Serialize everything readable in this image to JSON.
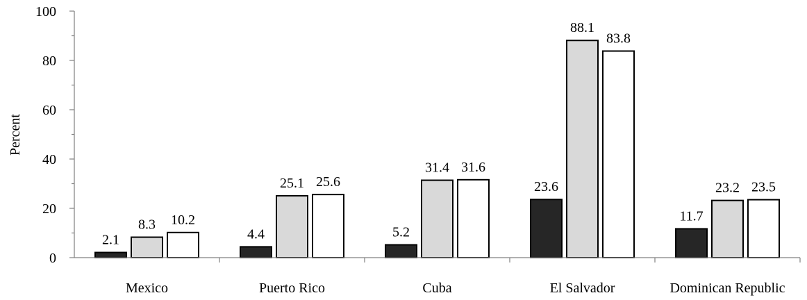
{
  "chart_data": {
    "type": "bar",
    "title": "",
    "xlabel": "",
    "ylabel": "Percent",
    "ylim": [
      0,
      100
    ],
    "yticks": [
      0,
      20,
      40,
      60,
      80,
      100
    ],
    "grid": false,
    "legend": "none",
    "categories": [
      "Mexico",
      "Puerto Rico",
      "Cuba",
      "El Salvador",
      "Dominican Republic"
    ],
    "series": [
      {
        "values": [
          2.1,
          4.4,
          5.2,
          23.6,
          11.7
        ],
        "color": "#262626"
      },
      {
        "values": [
          8.3,
          25.1,
          31.4,
          88.1,
          23.2
        ],
        "color": "#d9d9d9"
      },
      {
        "values": [
          10.2,
          25.6,
          31.6,
          83.8,
          23.5
        ],
        "color": "#ffffff"
      }
    ]
  }
}
